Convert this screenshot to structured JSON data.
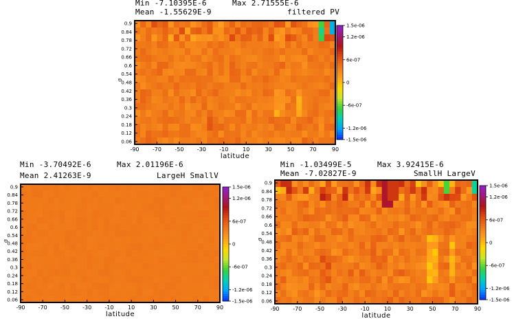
{
  "charts": [
    {
      "id": "top",
      "stats": {
        "min": "Min  -7.10395E-6",
        "max": "Max  2.71555E-6",
        "mean": "Mean  -1.55629E-9"
      },
      "title": "filtered PV",
      "xlabel": "latitude",
      "ylabel": "sigma",
      "ylabel_shown": "σ"
    },
    {
      "id": "bottom-left",
      "stats": {
        "min": "Min  -3.70492E-6",
        "max": "Max  2.01196E-6",
        "mean": "Mean  2.41263E-9"
      },
      "title": "LargeH  SmallV",
      "xlabel": "latitude",
      "ylabel": "sigma",
      "ylabel_shown": "σ"
    },
    {
      "id": "bottom-right",
      "stats": {
        "min": "Min  -1.03499E-5",
        "max": "Max  3.92415E-6",
        "mean": "Mean  -7.02827E-9"
      },
      "title": "SmallH  LargeV",
      "xlabel": "latitude",
      "ylabel": "sigma",
      "ylabel_shown": "σ"
    }
  ],
  "chart_data": [
    {
      "type": "heatmap",
      "title": "filtered PV",
      "xlabel": "latitude",
      "ylabel": "sigma",
      "x_ticks": [
        "-90",
        "-70",
        "-50",
        "-30",
        "-10",
        "10",
        "30",
        "50",
        "70",
        "90"
      ],
      "y_ticks": [
        "0.9",
        "0.84",
        "0.78",
        "0.72",
        "0.66",
        "0.6",
        "0.54",
        "0.48",
        "0.42",
        "0.36",
        "0.3",
        "0.24",
        "0.18",
        "0.12",
        "0.06"
      ],
      "xlim": [
        -90,
        90
      ],
      "ylim": [
        0.04,
        0.92
      ],
      "colorbar_ticks": [
        "1.5e-06",
        "1.2e-06",
        "6e-07",
        "0",
        "-6e-07",
        "-1.2e-06",
        "-1.5e-06"
      ],
      "colorbar_range": [
        -1.5e-06,
        1.5e-06
      ],
      "min": -7.10395e-06,
      "max": 2.71555e-06,
      "mean": -1.55629e-09
    },
    {
      "type": "heatmap",
      "title": "LargeH  SmallV",
      "xlabel": "latitude",
      "ylabel": "sigma",
      "x_ticks": [
        "-90",
        "-70",
        "-50",
        "-30",
        "-10",
        "10",
        "30",
        "50",
        "70",
        "90"
      ],
      "y_ticks": [
        "0.9",
        "0.84",
        "0.78",
        "0.72",
        "0.66",
        "0.6",
        "0.54",
        "0.48",
        "0.42",
        "0.36",
        "0.3",
        "0.24",
        "0.18",
        "0.12",
        "0.06"
      ],
      "xlim": [
        -90,
        90
      ],
      "ylim": [
        0.04,
        0.92
      ],
      "colorbar_ticks": [
        "1.5e-06",
        "1.2e-06",
        "6e-07",
        "0",
        "-6e-07",
        "-1.2e-06",
        "-1.5e-06"
      ],
      "colorbar_range": [
        -1.5e-06,
        1.5e-06
      ],
      "min": -3.70492e-06,
      "max": 2.01196e-06,
      "mean": 2.41263e-09
    },
    {
      "type": "heatmap",
      "title": "SmallH  LargeV",
      "xlabel": "latitude",
      "ylabel": "sigma",
      "x_ticks": [
        "-90",
        "-70",
        "-50",
        "-30",
        "-10",
        "10",
        "30",
        "50",
        "70",
        "90"
      ],
      "y_ticks": [
        "0.9",
        "0.84",
        "0.78",
        "0.72",
        "0.66",
        "0.6",
        "0.54",
        "0.48",
        "0.42",
        "0.36",
        "0.3",
        "0.24",
        "0.18",
        "0.12",
        "0.06"
      ],
      "xlim": [
        -90,
        90
      ],
      "ylim": [
        0.04,
        0.92
      ],
      "colorbar_ticks": [
        "1.5e-06",
        "1.2e-06",
        "6e-07",
        "0",
        "-6e-07",
        "-1.2e-06",
        "-1.5e-06"
      ],
      "colorbar_range": [
        -1.5e-06,
        1.5e-06
      ],
      "min": -1.03499e-05,
      "max": 3.92415e-06,
      "mean": -7.02827e-09
    }
  ],
  "colormap": [
    "#0a2cff",
    "#00a2ff",
    "#00d2b4",
    "#3cd23c",
    "#c8e628",
    "#ffd800",
    "#ff9e1e",
    "#f07818",
    "#e04a10",
    "#b01414",
    "#a01a78",
    "#9020d0"
  ]
}
